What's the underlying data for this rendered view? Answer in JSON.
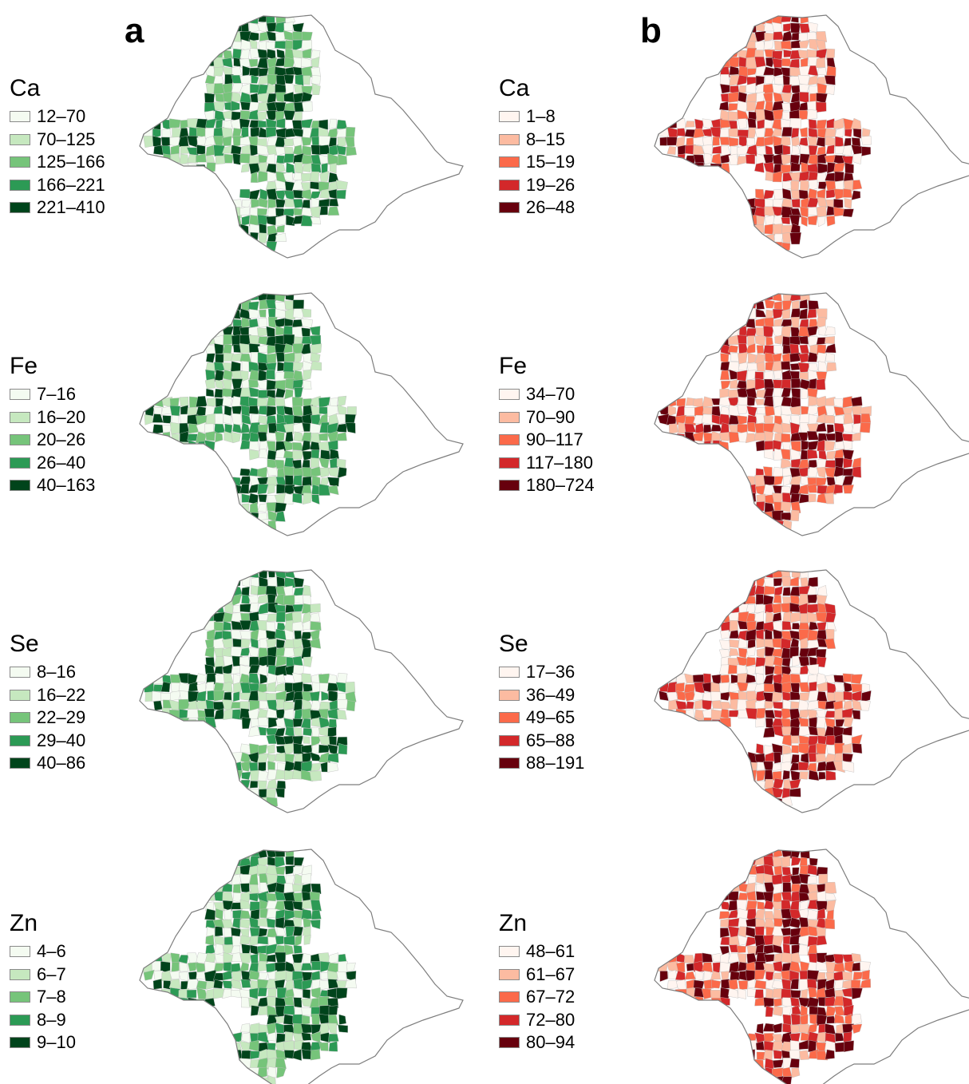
{
  "panels": [
    {
      "letter": "a",
      "scheme": "greens"
    },
    {
      "letter": "b",
      "scheme": "reds"
    }
  ],
  "colors": {
    "greens": [
      "#f4fbf1",
      "#c6e8bf",
      "#76c47a",
      "#2c9a55",
      "#00441b"
    ],
    "reds": [
      "#fff5f0",
      "#fcbba1",
      "#fb6a4a",
      "#d3282a",
      "#67000d"
    ],
    "outline": "#7d7d7d",
    "district_line": "#bdbdbd"
  },
  "nutrients": [
    {
      "name": "Ca",
      "a": [
        "12–70",
        "70–125",
        "125–166",
        "166–221",
        "221–410"
      ],
      "b": [
        "1–8",
        "8–15",
        "15–19",
        "19–26",
        "26–48"
      ]
    },
    {
      "name": "Fe",
      "a": [
        "7–16",
        "16–20",
        "20–26",
        "26–40",
        "40–163"
      ],
      "b": [
        "34–70",
        "70–90",
        "90–117",
        "117–180",
        "180–724"
      ]
    },
    {
      "name": "Se",
      "a": [
        "8–16",
        "16–22",
        "22–29",
        "29–40",
        "40–86"
      ],
      "b": [
        "17–36",
        "36–49",
        "49–65",
        "65–88",
        "88–191"
      ]
    },
    {
      "name": "Zn",
      "a": [
        "4–6",
        "6–7",
        "7–8",
        "8–9",
        "9–10"
      ],
      "b": [
        "48–61",
        "61–67",
        "67–72",
        "72–80",
        "80–94"
      ]
    }
  ]
}
